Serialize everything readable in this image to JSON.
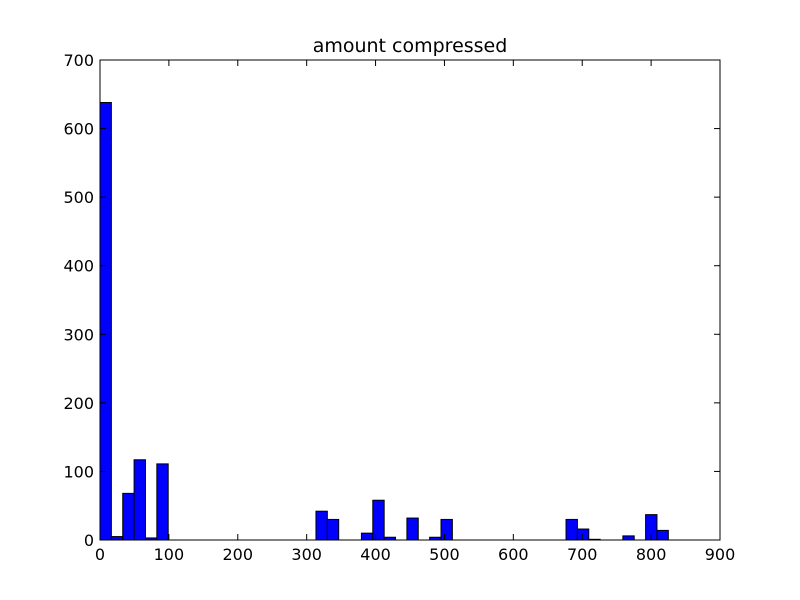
{
  "chart_data": {
    "type": "bar",
    "title": "amount compressed",
    "xlabel": "",
    "ylabel": "",
    "xlim": [
      0,
      900
    ],
    "ylim": [
      0,
      700
    ],
    "x_ticks": [
      0,
      100,
      200,
      300,
      400,
      500,
      600,
      700,
      800,
      900
    ],
    "y_ticks": [
      0,
      100,
      200,
      300,
      400,
      500,
      600,
      700
    ],
    "grid": false,
    "bar_color": "#0000ff",
    "bins": [
      {
        "x0": 0,
        "x1": 16.5,
        "value": 638
      },
      {
        "x0": 16.5,
        "x1": 33,
        "value": 5
      },
      {
        "x0": 33,
        "x1": 49.5,
        "value": 68
      },
      {
        "x0": 49.5,
        "x1": 66,
        "value": 117
      },
      {
        "x0": 66,
        "x1": 82.5,
        "value": 3
      },
      {
        "x0": 82.5,
        "x1": 99,
        "value": 111
      },
      {
        "x0": 99,
        "x1": 115.5,
        "value": 0
      },
      {
        "x0": 313.5,
        "x1": 330,
        "value": 42
      },
      {
        "x0": 330,
        "x1": 346.5,
        "value": 30
      },
      {
        "x0": 379.5,
        "x1": 396,
        "value": 10
      },
      {
        "x0": 396,
        "x1": 412.5,
        "value": 58
      },
      {
        "x0": 412.5,
        "x1": 429,
        "value": 4
      },
      {
        "x0": 445.5,
        "x1": 462,
        "value": 32
      },
      {
        "x0": 478.5,
        "x1": 495,
        "value": 4
      },
      {
        "x0": 495,
        "x1": 511.5,
        "value": 30
      },
      {
        "x0": 676.5,
        "x1": 693,
        "value": 30
      },
      {
        "x0": 693,
        "x1": 709.5,
        "value": 16
      },
      {
        "x0": 709.5,
        "x1": 726,
        "value": 1
      },
      {
        "x0": 759,
        "x1": 775.5,
        "value": 6
      },
      {
        "x0": 792,
        "x1": 808.5,
        "value": 37
      },
      {
        "x0": 808.5,
        "x1": 825,
        "value": 14
      }
    ]
  }
}
